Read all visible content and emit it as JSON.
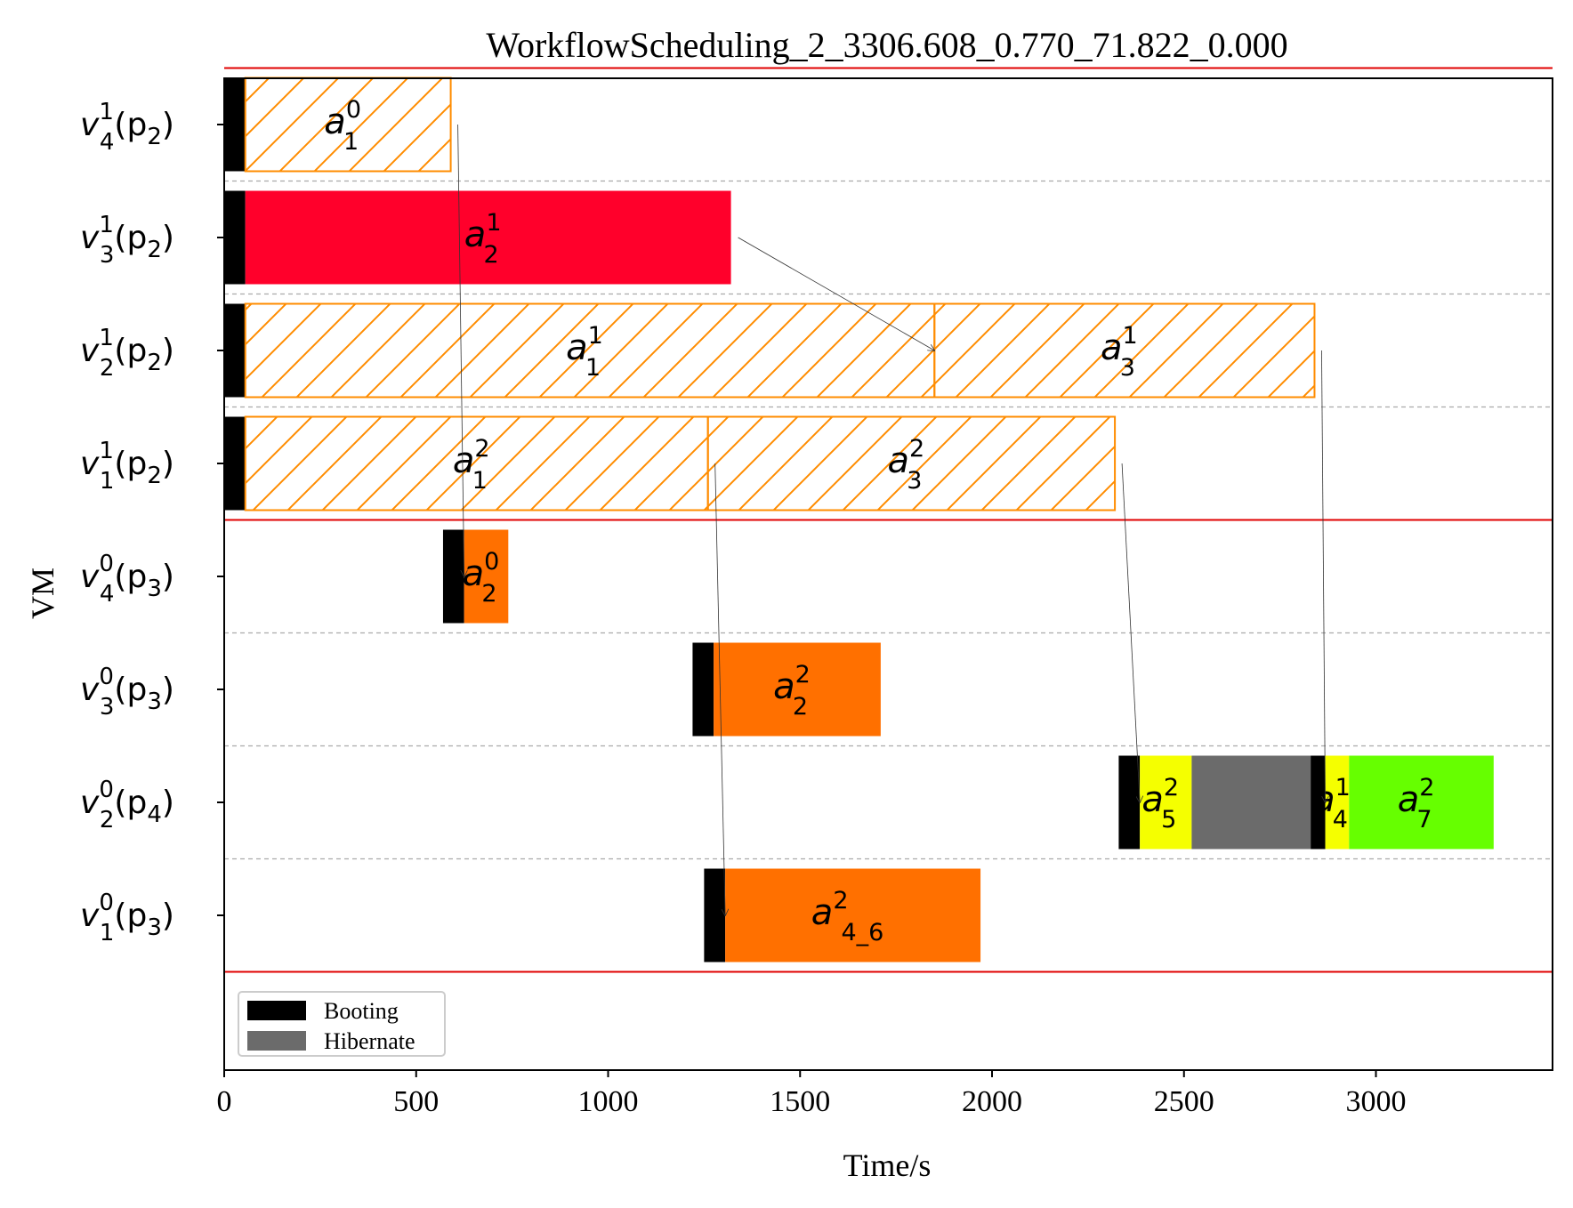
{
  "chart_data": {
    "type": "gantt",
    "title": "WorkflowScheduling_2_3306.608_0.770_71.822_0.000",
    "xlabel": "Time/s",
    "ylabel": "VM",
    "xlim": [
      0,
      3460
    ],
    "xticks": [
      0,
      500,
      1000,
      1500,
      2000,
      2500,
      3000
    ],
    "rows": [
      {
        "base": "v",
        "sub": "4",
        "sup": "1",
        "arg": "(p",
        "argsub": "2",
        "close": ")"
      },
      {
        "base": "v",
        "sub": "3",
        "sup": "1",
        "arg": "(p",
        "argsub": "2",
        "close": ")"
      },
      {
        "base": "v",
        "sub": "2",
        "sup": "1",
        "arg": "(p",
        "argsub": "2",
        "close": ")"
      },
      {
        "base": "v",
        "sub": "1",
        "sup": "1",
        "arg": "(p",
        "argsub": "2",
        "close": ")"
      },
      {
        "base": "v",
        "sub": "4",
        "sup": "0",
        "arg": "(p",
        "argsub": "3",
        "close": ")"
      },
      {
        "base": "v",
        "sub": "3",
        "sup": "0",
        "arg": "(p",
        "argsub": "3",
        "close": ")"
      },
      {
        "base": "v",
        "sub": "2",
        "sup": "0",
        "arg": "(p",
        "argsub": "4",
        "close": ")"
      },
      {
        "base": "v",
        "sub": "1",
        "sup": "0",
        "arg": "(p",
        "argsub": "3",
        "close": ")"
      }
    ],
    "group_separators_after_row": [
      3
    ],
    "segments": [
      {
        "row": 0,
        "start": 0,
        "end": 55,
        "kind": "booting"
      },
      {
        "row": 0,
        "start": 55,
        "end": 590,
        "kind": "task",
        "fill": "none",
        "hatch": true,
        "label": {
          "base": "a",
          "sub": "1",
          "sup": "0"
        }
      },
      {
        "row": 1,
        "start": 0,
        "end": 55,
        "kind": "booting"
      },
      {
        "row": 1,
        "start": 55,
        "end": 1320,
        "kind": "task",
        "fill": "#ff002b",
        "hatch": false,
        "label": {
          "base": "a",
          "sub": "2",
          "sup": "1"
        }
      },
      {
        "row": 2,
        "start": 0,
        "end": 55,
        "kind": "booting"
      },
      {
        "row": 2,
        "start": 55,
        "end": 1850,
        "kind": "task",
        "fill": "none",
        "hatch": true,
        "label": {
          "base": "a",
          "sub": "1",
          "sup": "1"
        }
      },
      {
        "row": 2,
        "start": 1850,
        "end": 2840,
        "kind": "task",
        "fill": "none",
        "hatch": true,
        "label": {
          "base": "a",
          "sub": "3",
          "sup": "1"
        }
      },
      {
        "row": 3,
        "start": 0,
        "end": 55,
        "kind": "booting"
      },
      {
        "row": 3,
        "start": 55,
        "end": 1260,
        "kind": "task",
        "fill": "none",
        "hatch": true,
        "label": {
          "base": "a",
          "sub": "1",
          "sup": "2"
        }
      },
      {
        "row": 3,
        "start": 1260,
        "end": 2320,
        "kind": "task",
        "fill": "none",
        "hatch": true,
        "label": {
          "base": "a",
          "sub": "3",
          "sup": "2"
        }
      },
      {
        "row": 4,
        "start": 570,
        "end": 625,
        "kind": "booting"
      },
      {
        "row": 4,
        "start": 625,
        "end": 740,
        "kind": "task",
        "fill": "#ff7000",
        "hatch": false,
        "label": {
          "base": "a",
          "sub": "2",
          "sup": "0"
        }
      },
      {
        "row": 5,
        "start": 1220,
        "end": 1275,
        "kind": "booting"
      },
      {
        "row": 5,
        "start": 1275,
        "end": 1710,
        "kind": "task",
        "fill": "#ff7000",
        "hatch": false,
        "label": {
          "base": "a",
          "sub": "2",
          "sup": "2"
        }
      },
      {
        "row": 6,
        "start": 2330,
        "end": 2385,
        "kind": "booting"
      },
      {
        "row": 6,
        "start": 2385,
        "end": 2520,
        "kind": "task",
        "fill": "#f5ff00",
        "hatch": false,
        "label": {
          "base": "a",
          "sub": "5",
          "sup": "2"
        }
      },
      {
        "row": 6,
        "start": 2520,
        "end": 2830,
        "kind": "hibernate"
      },
      {
        "row": 6,
        "start": 2830,
        "end": 2868,
        "kind": "booting"
      },
      {
        "row": 6,
        "start": 2868,
        "end": 2930,
        "kind": "task",
        "fill": "#f5ff00",
        "hatch": false,
        "label": {
          "base": "a",
          "sub": "4",
          "sup": "1"
        }
      },
      {
        "row": 6,
        "start": 2930,
        "end": 3306.608,
        "kind": "task",
        "fill": "#66ff00",
        "hatch": false,
        "label": {
          "base": "a",
          "sub": "7",
          "sup": "2"
        }
      },
      {
        "row": 7,
        "start": 1250,
        "end": 1305,
        "kind": "booting"
      },
      {
        "row": 7,
        "start": 1305,
        "end": 1970,
        "kind": "task",
        "fill": "#ff7000",
        "hatch": false,
        "label": {
          "base": "a",
          "sub": "4_6",
          "sup": "2"
        }
      }
    ],
    "dependencies": [
      {
        "from": [
          590,
          0
        ],
        "to": [
          625,
          4
        ]
      },
      {
        "from": [
          1320,
          1
        ],
        "to": [
          1850,
          2
        ]
      },
      {
        "from": [
          1260,
          3
        ],
        "to": [
          1305,
          7
        ]
      },
      {
        "from": [
          2320,
          3
        ],
        "to": [
          2385,
          6
        ]
      },
      {
        "from": [
          2840,
          2
        ],
        "to": [
          2868,
          6
        ]
      }
    ],
    "legend": {
      "position": "lower-left",
      "items": [
        {
          "label": "Booting",
          "color": "#000000"
        },
        {
          "label": "Hibernate",
          "color": "#6b6b6b"
        }
      ]
    },
    "colors": {
      "booting": "#000000",
      "hibernate": "#6b6b6b",
      "hatch_outline": "#ff8c00",
      "separator_red": "#e00000",
      "row_divider": "#aaaaaa"
    }
  }
}
